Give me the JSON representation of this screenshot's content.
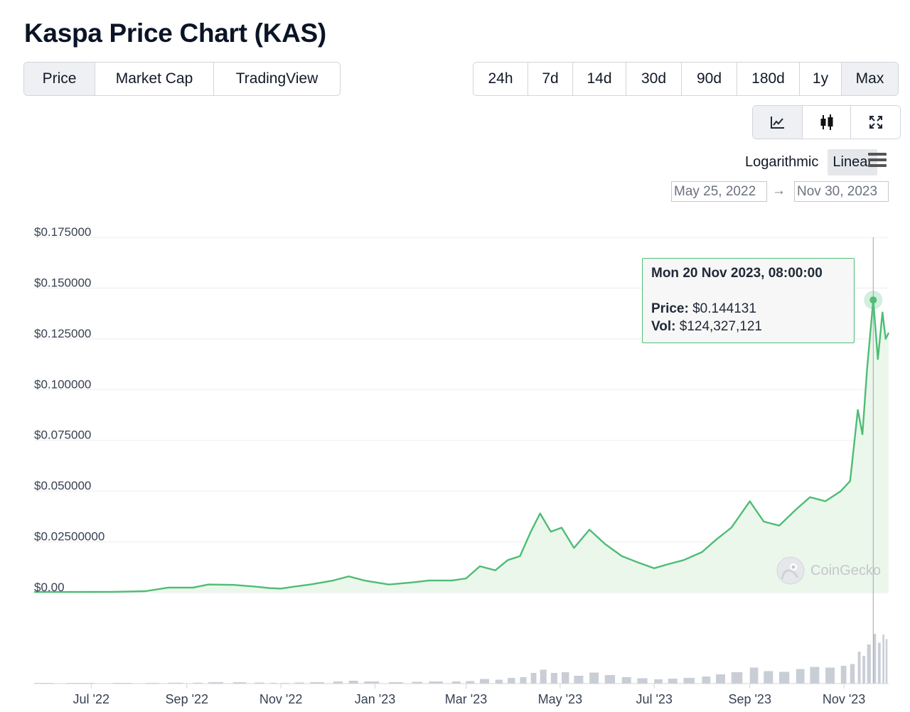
{
  "page": {
    "title": "Kaspa Price Chart (KAS)"
  },
  "view_tabs": [
    {
      "label": "Price",
      "active": true
    },
    {
      "label": "Market Cap",
      "active": false
    },
    {
      "label": "TradingView",
      "active": false
    }
  ],
  "range_tabs": [
    {
      "label": "24h",
      "active": false
    },
    {
      "label": "7d",
      "active": false
    },
    {
      "label": "14d",
      "active": false
    },
    {
      "label": "30d",
      "active": false
    },
    {
      "label": "90d",
      "active": false
    },
    {
      "label": "180d",
      "active": false
    },
    {
      "label": "1y",
      "active": false
    },
    {
      "label": "Max",
      "active": true
    }
  ],
  "chart_type_icons": [
    "line-chart-icon",
    "candlestick-icon",
    "fullscreen-icon"
  ],
  "scale": {
    "logarithmic_label": "Logarithmic",
    "linear_label": "Linear",
    "active": "Linear"
  },
  "date_range": {
    "from": "May 25, 2022",
    "to": "Nov 30, 2023",
    "arrow": "→"
  },
  "tooltip": {
    "date": "Mon 20 Nov 2023, 08:00:00",
    "price_label": "Price:",
    "price_value": "$0.144131",
    "vol_label": "Vol:",
    "vol_value": "$124,327,121"
  },
  "watermark": "CoinGecko",
  "colors": {
    "line": "#4dbd74",
    "fill": "#e9f6e9",
    "grid": "#ededed",
    "axis": "#d1d5db",
    "volume": "#c9ced6"
  },
  "chart_data": {
    "type": "area",
    "x_unit": "date",
    "y_unit": "USD",
    "ylim": [
      0,
      0.175
    ],
    "y_ticks": [
      {
        "value": 0.175,
        "label": "$0.175000"
      },
      {
        "value": 0.15,
        "label": "$0.150000"
      },
      {
        "value": 0.125,
        "label": "$0.125000"
      },
      {
        "value": 0.1,
        "label": "$0.100000"
      },
      {
        "value": 0.075,
        "label": "$0.075000"
      },
      {
        "value": 0.05,
        "label": "$0.050000"
      },
      {
        "value": 0.025,
        "label": "$0.02500000"
      },
      {
        "value": 0,
        "label": "$0.00"
      }
    ],
    "x_ticks": [
      {
        "date": "2022-07-01",
        "label": "Jul '22"
      },
      {
        "date": "2022-09-01",
        "label": "Sep '22"
      },
      {
        "date": "2022-11-01",
        "label": "Nov '22"
      },
      {
        "date": "2023-01-01",
        "label": "Jan '23"
      },
      {
        "date": "2023-03-01",
        "label": "Mar '23"
      },
      {
        "date": "2023-05-01",
        "label": "May '23"
      },
      {
        "date": "2023-07-01",
        "label": "Jul '23"
      },
      {
        "date": "2023-09-01",
        "label": "Sep '23"
      },
      {
        "date": "2023-11-01",
        "label": "Nov '23"
      }
    ],
    "x_range": [
      "2022-05-25",
      "2023-11-30"
    ],
    "highlight": {
      "date": "2023-11-20",
      "price": 0.144131
    },
    "price_series": [
      [
        "2022-05-25",
        0.0003
      ],
      [
        "2022-06-15",
        0.0003
      ],
      [
        "2022-07-15",
        0.0004
      ],
      [
        "2022-08-05",
        0.0007
      ],
      [
        "2022-08-20",
        0.0025
      ],
      [
        "2022-09-05",
        0.0025
      ],
      [
        "2022-09-15",
        0.004
      ],
      [
        "2022-10-01",
        0.0038
      ],
      [
        "2022-10-15",
        0.003
      ],
      [
        "2022-10-25",
        0.0022
      ],
      [
        "2022-11-01",
        0.002
      ],
      [
        "2022-11-10",
        0.003
      ],
      [
        "2022-11-20",
        0.004
      ],
      [
        "2022-12-05",
        0.006
      ],
      [
        "2022-12-15",
        0.008
      ],
      [
        "2022-12-25",
        0.006
      ],
      [
        "2023-01-10",
        0.004
      ],
      [
        "2023-01-25",
        0.005
      ],
      [
        "2023-02-05",
        0.006
      ],
      [
        "2023-02-20",
        0.006
      ],
      [
        "2023-03-01",
        0.007
      ],
      [
        "2023-03-10",
        0.013
      ],
      [
        "2023-03-20",
        0.011
      ],
      [
        "2023-03-28",
        0.016
      ],
      [
        "2023-04-05",
        0.018
      ],
      [
        "2023-04-12",
        0.03
      ],
      [
        "2023-04-18",
        0.039
      ],
      [
        "2023-04-25",
        0.03
      ],
      [
        "2023-05-02",
        0.032
      ],
      [
        "2023-05-10",
        0.022
      ],
      [
        "2023-05-20",
        0.031
      ],
      [
        "2023-05-30",
        0.024
      ],
      [
        "2023-06-10",
        0.018
      ],
      [
        "2023-06-20",
        0.015
      ],
      [
        "2023-07-01",
        0.012
      ],
      [
        "2023-07-10",
        0.014
      ],
      [
        "2023-07-20",
        0.016
      ],
      [
        "2023-08-01",
        0.02
      ],
      [
        "2023-08-10",
        0.026
      ],
      [
        "2023-08-20",
        0.032
      ],
      [
        "2023-09-01",
        0.045
      ],
      [
        "2023-09-10",
        0.035
      ],
      [
        "2023-09-20",
        0.033
      ],
      [
        "2023-10-01",
        0.041
      ],
      [
        "2023-10-10",
        0.047
      ],
      [
        "2023-10-20",
        0.045
      ],
      [
        "2023-10-30",
        0.05
      ],
      [
        "2023-11-05",
        0.055
      ],
      [
        "2023-11-10",
        0.09
      ],
      [
        "2023-11-13",
        0.078
      ],
      [
        "2023-11-16",
        0.11
      ],
      [
        "2023-11-20",
        0.144131
      ],
      [
        "2023-11-23",
        0.115
      ],
      [
        "2023-11-26",
        0.138
      ],
      [
        "2023-11-28",
        0.125
      ],
      [
        "2023-11-30",
        0.128
      ]
    ]
  }
}
